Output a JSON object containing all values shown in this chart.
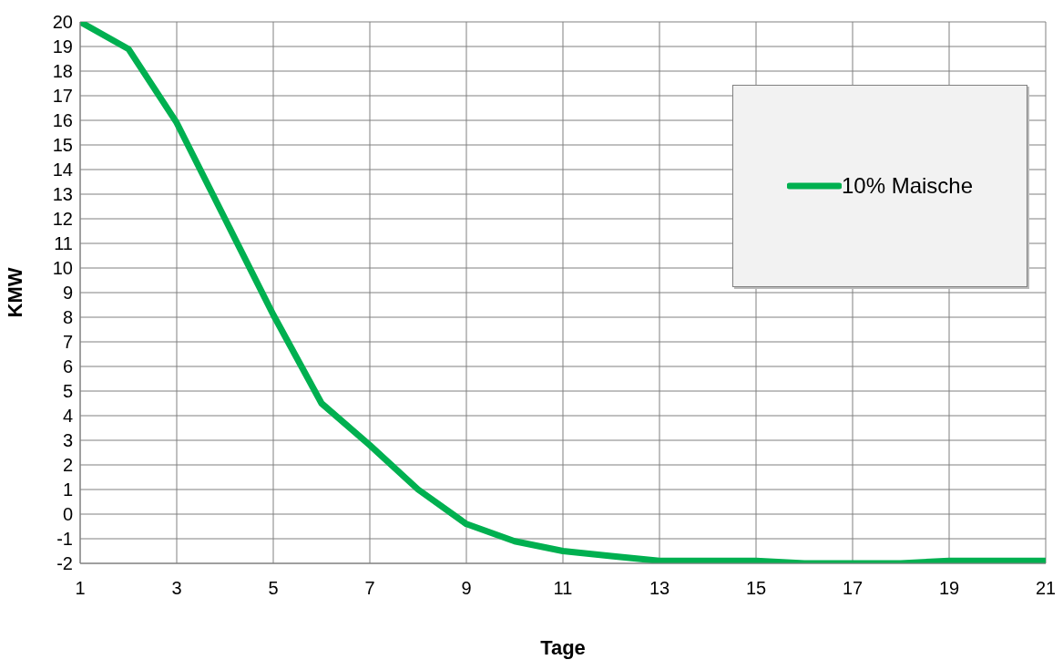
{
  "chart_data": {
    "type": "line",
    "xlabel": "Tage",
    "ylabel": "KMW",
    "x": [
      1,
      2,
      3,
      4,
      5,
      6,
      7,
      8,
      9,
      10,
      11,
      12,
      13,
      14,
      15,
      16,
      17,
      18,
      19,
      20,
      21
    ],
    "series": [
      {
        "name": "10% Maische",
        "color": "#00b050",
        "values": [
          20,
          18.9,
          15.9,
          12,
          8.1,
          4.5,
          2.8,
          1.0,
          -0.4,
          -1.1,
          -1.5,
          -1.7,
          -1.9,
          -1.9,
          -1.9,
          -2.0,
          -2.0,
          -2.0,
          -1.9,
          -1.9,
          -1.9
        ]
      }
    ],
    "xlim": [
      1,
      21
    ],
    "xticks": [
      1,
      3,
      5,
      7,
      9,
      11,
      13,
      15,
      17,
      19,
      21
    ],
    "ylim": [
      -2,
      20
    ],
    "yticks": [
      -2,
      -1,
      0,
      1,
      2,
      3,
      4,
      5,
      6,
      7,
      8,
      9,
      10,
      11,
      12,
      13,
      14,
      15,
      16,
      17,
      18,
      19,
      20
    ],
    "grid": true,
    "legend": "top right",
    "marker": "none",
    "line_style": "solid"
  }
}
